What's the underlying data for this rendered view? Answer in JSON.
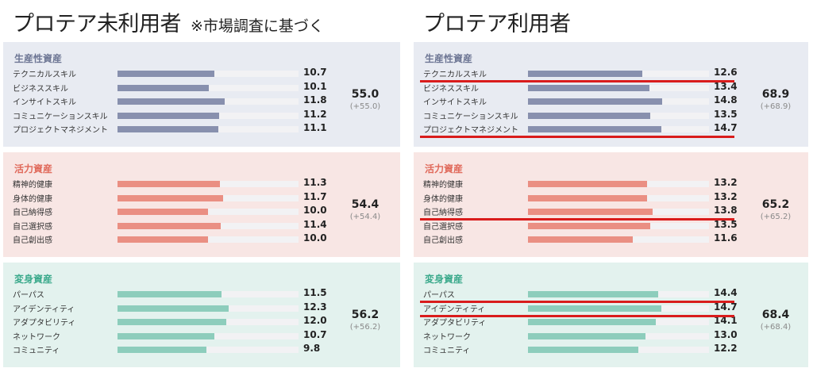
{
  "left": {
    "title": "プロテア未利用者",
    "note": "※市場調査に基づく",
    "panels": [
      {
        "title": "生産性資産",
        "items": [
          {
            "label": "テクニカルスキル",
            "value": 10.7
          },
          {
            "label": "ビジネススキル",
            "value": 10.1
          },
          {
            "label": "インサイトスキル",
            "value": 11.8
          },
          {
            "label": "コミュニケーションスキル",
            "value": 11.2
          },
          {
            "label": "プロジェクトマネジメント",
            "value": 11.1
          }
        ],
        "total": "55.0",
        "diff": "(+55.0)"
      },
      {
        "title": "活力資産",
        "items": [
          {
            "label": "精神的健康",
            "value": 11.3
          },
          {
            "label": "身体的健康",
            "value": 11.7
          },
          {
            "label": "自己納得感",
            "value": 10.0
          },
          {
            "label": "自己選択感",
            "value": 11.4
          },
          {
            "label": "自己創出感",
            "value": 10.0
          }
        ],
        "total": "54.4",
        "diff": "(+54.4)"
      },
      {
        "title": "変身資産",
        "items": [
          {
            "label": "パーパス",
            "value": 11.5
          },
          {
            "label": "アイデンティティ",
            "value": 12.3
          },
          {
            "label": "アダプタビリティ",
            "value": 12.0
          },
          {
            "label": "ネットワーク",
            "value": 10.7
          },
          {
            "label": "コミュニティ",
            "value": 9.8
          }
        ],
        "total": "56.2",
        "diff": "(+56.2)"
      }
    ]
  },
  "right": {
    "title": "プロテア利用者",
    "panels": [
      {
        "title": "生産性資産",
        "items": [
          {
            "label": "テクニカルスキル",
            "value": 12.6
          },
          {
            "label": "ビジネススキル",
            "value": 13.4
          },
          {
            "label": "インサイトスキル",
            "value": 14.8
          },
          {
            "label": "コミュニケーションスキル",
            "value": 13.5
          },
          {
            "label": "プロジェクトマネジメント",
            "value": 14.7
          }
        ],
        "total": "68.9",
        "diff": "(+68.9)",
        "highlight_after": [
          0,
          4
        ]
      },
      {
        "title": "活力資産",
        "items": [
          {
            "label": "精神的健康",
            "value": 13.2
          },
          {
            "label": "身体的健康",
            "value": 13.2
          },
          {
            "label": "自己納得感",
            "value": 13.8
          },
          {
            "label": "自己選択感",
            "value": 13.5
          },
          {
            "label": "自己創出感",
            "value": 11.6
          }
        ],
        "total": "65.2",
        "diff": "(+65.2)",
        "highlight_after": [
          2
        ]
      },
      {
        "title": "変身資産",
        "items": [
          {
            "label": "パーパス",
            "value": 14.4
          },
          {
            "label": "アイデンティティ",
            "value": 14.7
          },
          {
            "label": "アダプタビリティ",
            "value": 14.1
          },
          {
            "label": "ネットワーク",
            "value": 13.0
          },
          {
            "label": "コミュニティ",
            "value": 12.2
          }
        ],
        "total": "68.4",
        "diff": "(+68.4)",
        "highlight_after": [
          0,
          1
        ]
      }
    ]
  },
  "chart_data": [
    {
      "type": "bar",
      "title": "プロテア未利用者",
      "xlim": [
        0,
        20
      ],
      "groups": [
        {
          "name": "生産性資産",
          "categories": [
            "テクニカルスキル",
            "ビジネススキル",
            "インサイトスキル",
            "コミュニケーションスキル",
            "プロジェクトマネジメント"
          ],
          "values": [
            10.7,
            10.1,
            11.8,
            11.2,
            11.1
          ],
          "total": 55.0
        },
        {
          "name": "活力資産",
          "categories": [
            "精神的健康",
            "身体的健康",
            "自己納得感",
            "自己選択感",
            "自己創出感"
          ],
          "values": [
            11.3,
            11.7,
            10.0,
            11.4,
            10.0
          ],
          "total": 54.4
        },
        {
          "name": "変身資産",
          "categories": [
            "パーパス",
            "アイデンティティ",
            "アダプタビリティ",
            "ネットワーク",
            "コミュニティ"
          ],
          "values": [
            11.5,
            12.3,
            12.0,
            10.7,
            9.8
          ],
          "total": 56.2
        }
      ]
    },
    {
      "type": "bar",
      "title": "プロテア利用者",
      "xlim": [
        0,
        20
      ],
      "groups": [
        {
          "name": "生産性資産",
          "categories": [
            "テクニカルスキル",
            "ビジネススキル",
            "インサイトスキル",
            "コミュニケーションスキル",
            "プロジェクトマネジメント"
          ],
          "values": [
            12.6,
            13.4,
            14.8,
            13.5,
            14.7
          ],
          "total": 68.9
        },
        {
          "name": "活力資産",
          "categories": [
            "精神的健康",
            "身体的健康",
            "自己納得感",
            "自己選択感",
            "自己創出感"
          ],
          "values": [
            13.2,
            13.2,
            13.8,
            13.5,
            11.6
          ],
          "total": 65.2
        },
        {
          "name": "変身資産",
          "categories": [
            "パーパス",
            "アイデンティティ",
            "アダプタビリティ",
            "ネットワーク",
            "コミュニティ"
          ],
          "values": [
            14.4,
            14.7,
            14.1,
            13.0,
            12.2
          ],
          "total": 68.4
        }
      ]
    }
  ],
  "colors": {
    "productivity_bar": "#8890ae",
    "vitality_bar": "#ea8f83",
    "transform_bar": "#8dcdbc",
    "highlight_line": "#d91c1c"
  }
}
